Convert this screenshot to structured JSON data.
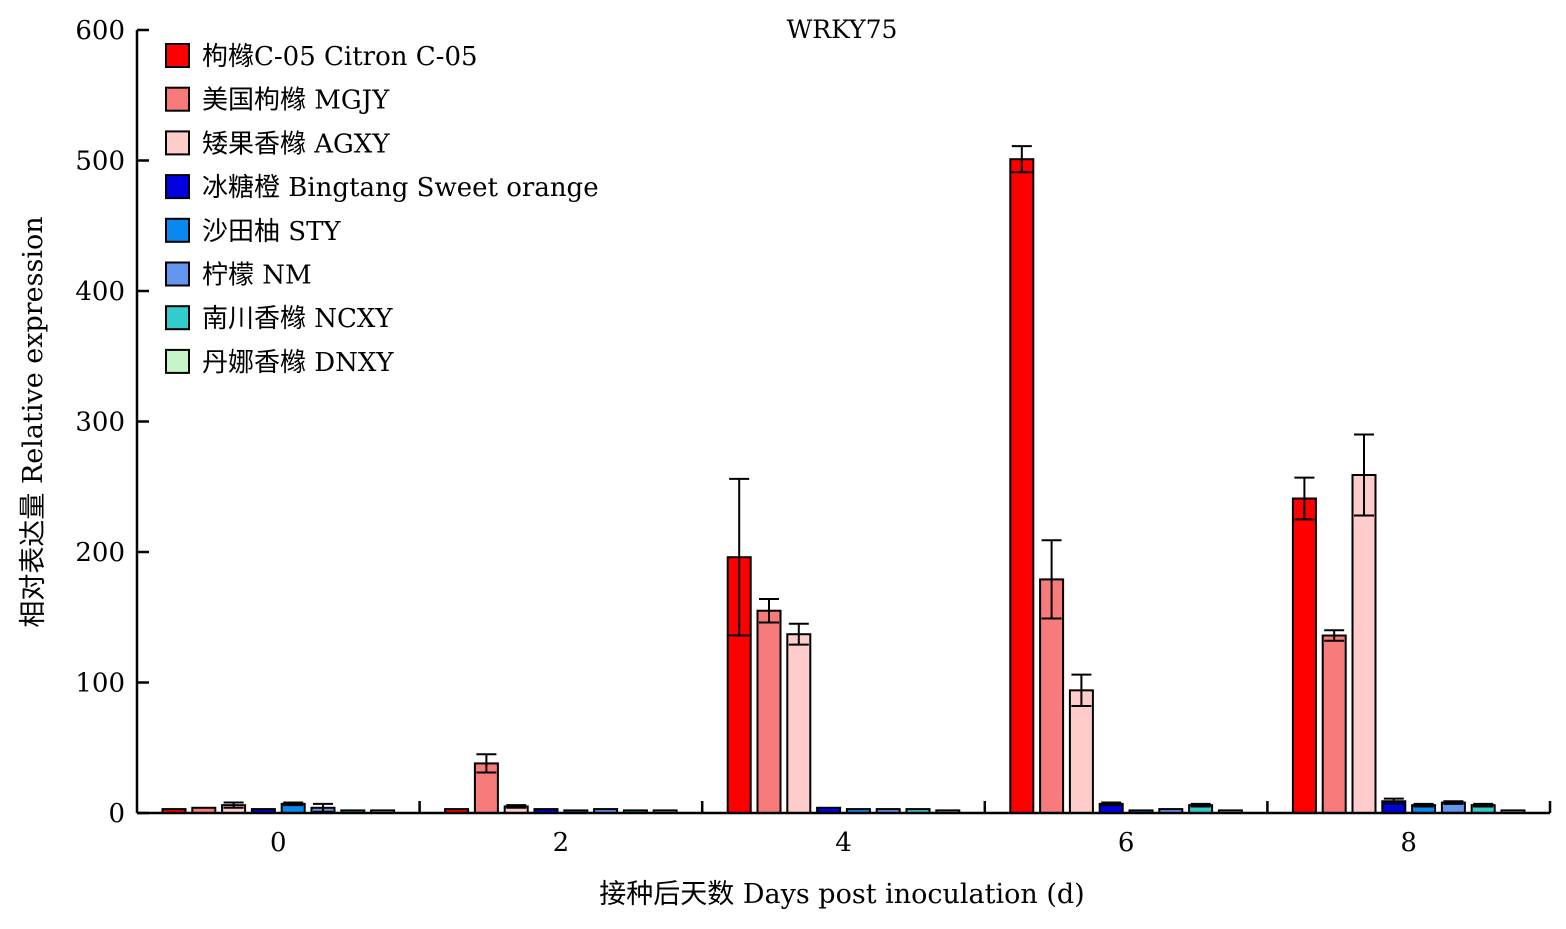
{
  "chart_data": {
    "type": "bar",
    "title": "WRKY75",
    "xlabel": "接种后天数 Days post inoculation (d)",
    "ylabel": "相对表达量 Relative expression",
    "ylim": [
      0,
      600
    ],
    "yticks": [
      "0",
      "100",
      "200",
      "300",
      "400",
      "500",
      "600"
    ],
    "categories": [
      "0",
      "2",
      "4",
      "6",
      "8"
    ],
    "legend_position": "top-left",
    "series": [
      {
        "name": "枸橼C-05 Citron C-05",
        "color": "#ff0000",
        "values": [
          3,
          3,
          196,
          501,
          241
        ],
        "errors": [
          0.5,
          0.5,
          60,
          10,
          16
        ]
      },
      {
        "name": "美国枸橼 MGJY",
        "color": "#f77b7b",
        "values": [
          4,
          38,
          155,
          179,
          136
        ],
        "errors": [
          0.5,
          7,
          9,
          30,
          4
        ]
      },
      {
        "name": "矮果香橼 AGXY",
        "color": "#ffcccc",
        "values": [
          6,
          5,
          137,
          94,
          259
        ],
        "errors": [
          2,
          1,
          8,
          12,
          31
        ]
      },
      {
        "name": "冰糖橙 Bingtang Sweet orange",
        "color": "#0000e0",
        "values": [
          3,
          3,
          4,
          7,
          9
        ],
        "errors": [
          0.5,
          0.5,
          0.5,
          1,
          2
        ]
      },
      {
        "name": "沙田柚 STY",
        "color": "#0a88f0",
        "values": [
          7,
          2,
          3,
          2,
          6
        ],
        "errors": [
          1,
          0.5,
          0.5,
          0.5,
          1
        ]
      },
      {
        "name": "柠檬 NM",
        "color": "#6495ed",
        "values": [
          4,
          3,
          3,
          3,
          8
        ],
        "errors": [
          3,
          0.5,
          0.5,
          0.5,
          1
        ]
      },
      {
        "name": "南川香橼 NCXY",
        "color": "#33cccc",
        "values": [
          2,
          2,
          3,
          6,
          6
        ],
        "errors": [
          0.5,
          0.5,
          0.5,
          1,
          1
        ]
      },
      {
        "name": "丹娜香橼 DNXY",
        "color": "#c8f5c8",
        "values": [
          2,
          2,
          2,
          2,
          2
        ],
        "errors": [
          0.3,
          0.3,
          0.3,
          0.3,
          0.3
        ]
      }
    ]
  }
}
